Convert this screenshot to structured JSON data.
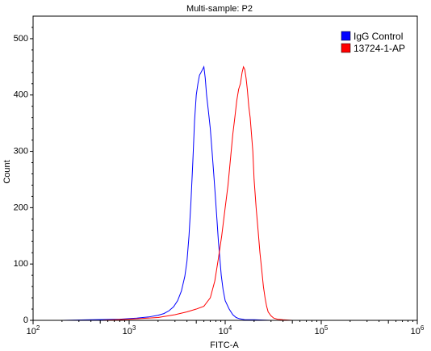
{
  "chart_data": {
    "type": "line",
    "title": "Multi-sample: P2",
    "xlabel": "FITC-A",
    "ylabel": "Count",
    "xscale": "log",
    "xlim": [
      100,
      1000000
    ],
    "ylim": [
      0,
      540
    ],
    "x_tick_values": [
      100,
      1000,
      10000,
      100000,
      1000000
    ],
    "x_tick_mantissa": "10",
    "x_tick_exponents": [
      "2",
      "3",
      "4",
      "5",
      "6"
    ],
    "y_ticks": [
      0,
      100,
      200,
      300,
      400,
      500
    ],
    "y_tick_labels": [
      "0",
      "100",
      "200",
      "300",
      "400",
      "500"
    ],
    "legend_position": "top-right",
    "grid": false,
    "series": [
      {
        "name": "IgG Control",
        "color": "#0000ff",
        "x": [
          200,
          400,
          800,
          1200,
          1600,
          2000,
          2300,
          2600,
          2900,
          3200,
          3500,
          3800,
          4000,
          4200,
          4400,
          4600,
          4800,
          5000,
          5200,
          5400,
          5600,
          5800,
          6000,
          6200,
          6400,
          6600,
          6800,
          7000,
          7300,
          7600,
          7900,
          8200,
          8500,
          8800,
          9100,
          9500,
          10000,
          11000,
          12000,
          13000,
          14000,
          16000,
          20000,
          30000,
          50000,
          100000,
          500000
        ],
        "y": [
          0,
          1,
          2,
          4,
          6,
          9,
          12,
          17,
          24,
          35,
          52,
          78,
          105,
          150,
          210,
          280,
          355,
          400,
          420,
          435,
          440,
          445,
          450,
          430,
          400,
          380,
          360,
          340,
          300,
          260,
          220,
          180,
          140,
          110,
          80,
          55,
          35,
          20,
          10,
          5,
          3,
          1,
          1,
          0,
          0,
          0,
          0
        ]
      },
      {
        "name": "13724-1-AP",
        "color": "#ff0000",
        "x": [
          500,
          1000,
          2000,
          3000,
          4000,
          5000,
          6000,
          7000,
          7800,
          8500,
          9200,
          10000,
          10700,
          11400,
          12000,
          12600,
          13200,
          13800,
          14400,
          15000,
          15500,
          16000,
          16500,
          17000,
          17600,
          18200,
          18800,
          19400,
          20000,
          21000,
          22000,
          23000,
          24000,
          25000,
          26000,
          27000,
          28000,
          30000,
          32000,
          35000,
          40000,
          50000,
          100000,
          500000
        ],
        "y": [
          0,
          2,
          5,
          10,
          15,
          20,
          25,
          40,
          70,
          110,
          150,
          200,
          240,
          290,
          330,
          360,
          390,
          410,
          420,
          440,
          450,
          445,
          430,
          410,
          380,
          360,
          330,
          300,
          250,
          200,
          160,
          120,
          90,
          60,
          40,
          25,
          15,
          8,
          4,
          2,
          1,
          0,
          0,
          0
        ]
      }
    ]
  }
}
